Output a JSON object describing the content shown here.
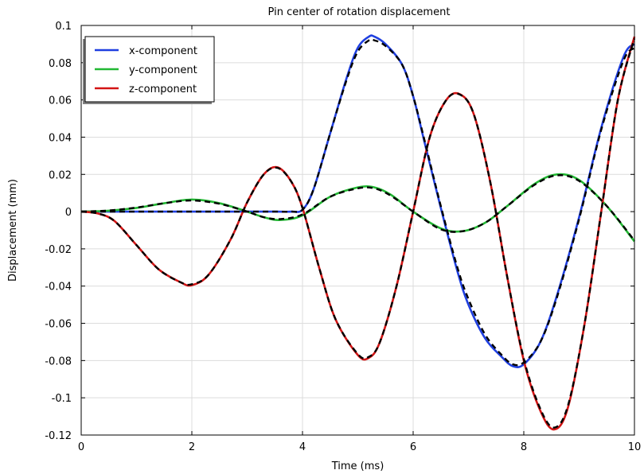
{
  "chart_data": {
    "type": "line",
    "title": "Pin center of rotation displacement",
    "xlabel": "Time (ms)",
    "ylabel": "Displacement (mm)",
    "xlim": [
      0,
      10
    ],
    "ylim": [
      -0.12,
      0.1
    ],
    "xticks": [
      0,
      2,
      4,
      6,
      8,
      10
    ],
    "xtick_labels": [
      "0",
      "2",
      "4",
      "6",
      "8",
      "10"
    ],
    "yticks": [
      0.1,
      0.08,
      0.06,
      0.04,
      0.02,
      0,
      -0.02,
      -0.04,
      -0.06,
      -0.08,
      -0.1,
      -0.12
    ],
    "ytick_labels": [
      "0.1",
      "0.08",
      "0.06",
      "0.04",
      "0.02",
      "0",
      "-0.02",
      "-0.04",
      "-0.06",
      "-0.08",
      "-0.1",
      "-0.12"
    ],
    "grid": true,
    "legend_position": "top-left",
    "series": [
      {
        "name": "x-component",
        "color": "#1f3fe0",
        "x": [
          0,
          0.5,
          1,
          1.5,
          2,
          2.5,
          3,
          3.5,
          3.8,
          4.0,
          4.2,
          4.5,
          4.8,
          5.0,
          5.2,
          5.3,
          5.5,
          5.8,
          6.0,
          6.2,
          6.5,
          6.8,
          7.0,
          7.3,
          7.6,
          7.8,
          8.0,
          8.3,
          8.6,
          9.0,
          9.4,
          9.8,
          10.0
        ],
        "values": [
          0,
          0,
          0,
          0,
          0,
          0,
          0,
          0,
          0,
          0.001,
          0.012,
          0.042,
          0.072,
          0.088,
          0.094,
          0.094,
          0.09,
          0.079,
          0.062,
          0.038,
          0.002,
          -0.032,
          -0.05,
          -0.068,
          -0.078,
          -0.083,
          -0.082,
          -0.07,
          -0.045,
          -0.003,
          0.045,
          0.083,
          0.09
        ]
      },
      {
        "name": "y-component",
        "color": "#22b833",
        "x": [
          0,
          0.5,
          1,
          1.5,
          2,
          2.5,
          3,
          3.3,
          3.6,
          4.0,
          4.5,
          5.0,
          5.3,
          5.6,
          6.0,
          6.5,
          6.9,
          7.3,
          7.7,
          8.2,
          8.6,
          9.0,
          9.5,
          10.0
        ],
        "values": [
          0,
          0.0005,
          0.002,
          0.0045,
          0.0065,
          0.0045,
          0,
          -0.003,
          -0.0045,
          -0.002,
          0.008,
          0.013,
          0.013,
          0.009,
          0,
          -0.009,
          -0.0105,
          -0.006,
          0.003,
          0.015,
          0.02,
          0.017,
          0.003,
          -0.016
        ]
      },
      {
        "name": "z-component",
        "color": "#d31414",
        "x": [
          0,
          0.3,
          0.6,
          1.0,
          1.4,
          1.8,
          2.0,
          2.3,
          2.7,
          3.0,
          3.3,
          3.55,
          3.8,
          4.0,
          4.3,
          4.6,
          5.0,
          5.2,
          5.4,
          5.7,
          6.0,
          6.3,
          6.6,
          6.85,
          7.1,
          7.4,
          7.7,
          8.0,
          8.3,
          8.55,
          8.8,
          9.1,
          9.4,
          9.7,
          10.0
        ],
        "values": [
          0,
          -0.001,
          -0.005,
          -0.018,
          -0.031,
          -0.038,
          -0.0395,
          -0.034,
          -0.015,
          0.005,
          0.02,
          0.0238,
          0.016,
          0.002,
          -0.03,
          -0.058,
          -0.077,
          -0.0785,
          -0.07,
          -0.04,
          0.0,
          0.04,
          0.06,
          0.063,
          0.052,
          0.015,
          -0.035,
          -0.08,
          -0.107,
          -0.117,
          -0.105,
          -0.06,
          0.0,
          0.06,
          0.094
        ]
      }
    ],
    "reference": {
      "color": "#000000",
      "style": "dashed",
      "x_curve": {
        "x": [
          0,
          0.5,
          1,
          1.5,
          2,
          2.5,
          3,
          3.5,
          3.8,
          4.0,
          4.2,
          4.5,
          4.8,
          5.0,
          5.2,
          5.3,
          5.5,
          5.8,
          6.0,
          6.2,
          6.5,
          6.8,
          7.0,
          7.3,
          7.6,
          7.8,
          8.0,
          8.3,
          8.6,
          9.0,
          9.4,
          9.8,
          10.0
        ],
        "values": [
          0,
          0,
          0,
          0,
          0,
          0,
          0,
          0,
          0,
          0.001,
          0.012,
          0.042,
          0.071,
          0.086,
          0.092,
          0.092,
          0.089,
          0.079,
          0.062,
          0.039,
          0.003,
          -0.03,
          -0.047,
          -0.066,
          -0.077,
          -0.082,
          -0.081,
          -0.07,
          -0.046,
          -0.004,
          0.044,
          0.081,
          0.088
        ]
      },
      "y_curve": {
        "x": [
          0,
          0.5,
          1,
          1.5,
          2,
          2.5,
          3,
          3.3,
          3.6,
          4.0,
          4.5,
          5.0,
          5.3,
          5.6,
          6.0,
          6.5,
          6.9,
          7.3,
          7.7,
          8.2,
          8.6,
          9.0,
          9.5,
          10.0
        ],
        "values": [
          0,
          0.0006,
          0.0022,
          0.0045,
          0.006,
          0.0042,
          0,
          -0.003,
          -0.004,
          -0.0015,
          0.008,
          0.0125,
          0.0125,
          0.0085,
          0,
          -0.0095,
          -0.0105,
          -0.006,
          0.003,
          0.0145,
          0.0195,
          0.0165,
          0.003,
          -0.0155
        ]
      },
      "z_curve": {
        "x": [
          0,
          0.3,
          0.6,
          1.0,
          1.4,
          1.8,
          2.0,
          2.3,
          2.7,
          3.0,
          3.3,
          3.55,
          3.8,
          4.0,
          4.3,
          4.6,
          5.0,
          5.2,
          5.4,
          5.7,
          6.0,
          6.3,
          6.6,
          6.85,
          7.1,
          7.4,
          7.7,
          8.0,
          8.3,
          8.55,
          8.8,
          9.1,
          9.4,
          9.7,
          10.0
        ],
        "values": [
          0,
          -0.001,
          -0.005,
          -0.018,
          -0.031,
          -0.038,
          -0.039,
          -0.034,
          -0.015,
          0.005,
          0.02,
          0.0235,
          0.016,
          0.002,
          -0.03,
          -0.058,
          -0.0765,
          -0.078,
          -0.07,
          -0.04,
          0.0,
          0.04,
          0.06,
          0.0628,
          0.052,
          0.015,
          -0.035,
          -0.079,
          -0.106,
          -0.116,
          -0.104,
          -0.06,
          0.0,
          0.06,
          0.093
        ]
      }
    }
  }
}
